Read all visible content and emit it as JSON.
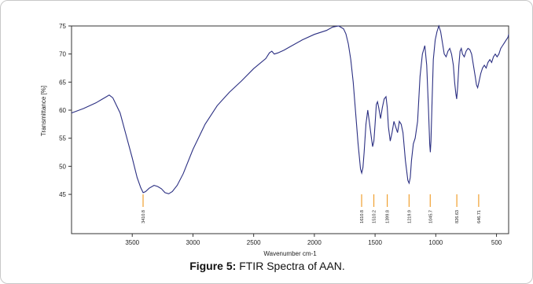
{
  "chart_data": {
    "type": "line",
    "xlabel": "Wavenumber cm-1",
    "ylabel": "Transmittance [%]",
    "xlim": [
      4000,
      400
    ],
    "ylim": [
      38,
      75
    ],
    "xticks": [
      3500,
      3000,
      2500,
      2000,
      1500,
      1000,
      500
    ],
    "yticks": [
      45,
      50,
      55,
      60,
      65,
      70,
      75
    ],
    "grid": false,
    "colors": {
      "line": "#2b2f82",
      "peak_markers": "#f0a030"
    },
    "series": [
      {
        "x": [
          4000,
          3900,
          3800,
          3720,
          3690,
          3660,
          3600,
          3550,
          3500,
          3460,
          3430,
          3410,
          3390,
          3360,
          3320,
          3290,
          3260,
          3230,
          3200,
          3170,
          3130,
          3080,
          3000,
          2900,
          2800,
          2700,
          2600,
          2500,
          2400,
          2370,
          2350,
          2330,
          2300,
          2250,
          2200,
          2100,
          2000,
          1900,
          1850,
          1800,
          1760,
          1740,
          1720,
          1700,
          1680,
          1660,
          1640,
          1620,
          1610,
          1600,
          1590,
          1575,
          1560,
          1545,
          1530,
          1520,
          1510,
          1500,
          1490,
          1480,
          1470,
          1455,
          1440,
          1425,
          1410,
          1400,
          1390,
          1375,
          1360,
          1345,
          1330,
          1315,
          1300,
          1285,
          1270,
          1250,
          1230,
          1220,
          1210,
          1200,
          1185,
          1170,
          1150,
          1130,
          1110,
          1090,
          1075,
          1060,
          1050,
          1045,
          1040,
          1030,
          1020,
          1005,
          990,
          975,
          960,
          945,
          930,
          915,
          900,
          885,
          870,
          855,
          845,
          835,
          828,
          820,
          810,
          800,
          790,
          780,
          765,
          750,
          735,
          720,
          705,
          690,
          675,
          665,
          655,
          645,
          630,
          615,
          600,
          585,
          570,
          555,
          540,
          525,
          510,
          495,
          480,
          465,
          450,
          435,
          420,
          405,
          400
        ],
        "y": [
          59.5,
          60.3,
          61.3,
          62.3,
          62.7,
          62.2,
          59.5,
          55.5,
          51.5,
          48.0,
          46.2,
          45.3,
          45.5,
          46.1,
          46.6,
          46.4,
          46.0,
          45.3,
          45.1,
          45.5,
          46.6,
          48.7,
          53.0,
          57.5,
          60.8,
          63.2,
          65.2,
          67.4,
          69.2,
          70.2,
          70.5,
          70.0,
          70.2,
          70.7,
          71.3,
          72.5,
          73.5,
          74.2,
          74.8,
          75.0,
          74.5,
          73.6,
          71.8,
          69.0,
          65.0,
          59.5,
          54.0,
          49.5,
          48.8,
          49.8,
          52.5,
          57.5,
          60.0,
          57.5,
          55.0,
          53.5,
          54.5,
          57.5,
          61.0,
          61.5,
          60.5,
          58.5,
          60.5,
          62.0,
          62.4,
          60.5,
          57.0,
          54.5,
          56.0,
          58.0,
          57.0,
          56.0,
          58.0,
          57.5,
          56.0,
          51.0,
          47.5,
          47.0,
          48.0,
          51.0,
          54.0,
          55.0,
          58.0,
          66.0,
          70.0,
          71.5,
          68.0,
          60.0,
          54.0,
          52.5,
          54.5,
          62.0,
          69.0,
          72.5,
          74.0,
          75.0,
          74.0,
          72.0,
          70.0,
          69.5,
          70.5,
          71.0,
          70.0,
          68.0,
          65.0,
          63.0,
          62.0,
          64.0,
          68.0,
          70.5,
          71.0,
          70.0,
          69.5,
          70.5,
          71.0,
          70.8,
          70.0,
          68.0,
          66.0,
          64.5,
          64.0,
          65.0,
          66.5,
          67.5,
          68.0,
          67.5,
          68.5,
          69.0,
          68.5,
          69.5,
          70.0,
          69.5,
          70.0,
          71.0,
          71.5,
          72.0,
          72.5,
          73.0,
          73.5
        ]
      }
    ],
    "peak_labels": [
      {
        "x": 3410.8,
        "label": "3410.8"
      },
      {
        "x": 1610.8,
        "label": "1610.8"
      },
      {
        "x": 1510.2,
        "label": "1510.2"
      },
      {
        "x": 1399.8,
        "label": "1399.8"
      },
      {
        "x": 1219.9,
        "label": "1219.9"
      },
      {
        "x": 1045.7,
        "label": "1045.7"
      },
      {
        "x": 826.63,
        "label": "826.63"
      },
      {
        "x": 646.71,
        "label": "646.71"
      }
    ]
  },
  "caption": {
    "prefix": "Figure 5:",
    "text": "FTIR Spectra of AAN."
  }
}
